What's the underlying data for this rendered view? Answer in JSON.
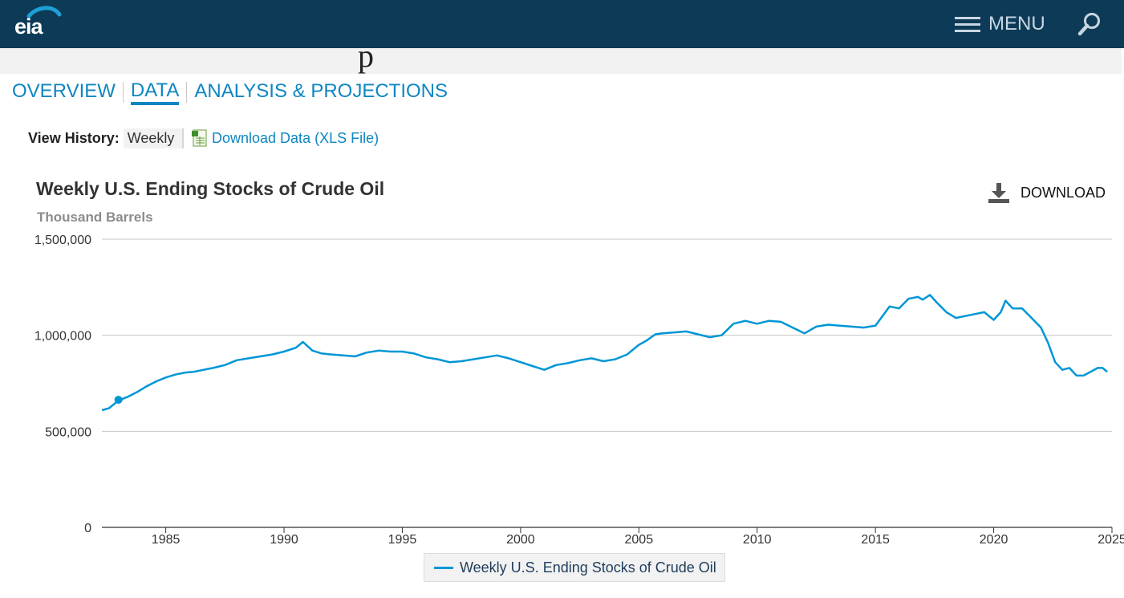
{
  "header": {
    "logo_text": "eia",
    "menu_label": "MENU"
  },
  "tabs": [
    {
      "label": "OVERVIEW"
    },
    {
      "label": "DATA"
    },
    {
      "label": "ANALYSIS & PROJECTIONS"
    }
  ],
  "toolbar": {
    "view_history_label": "View History:",
    "view_history_value": "Weekly",
    "download_xls_label": "Download Data (XLS File)",
    "download_label": "DOWNLOAD"
  },
  "colors": {
    "header_bg": "#0d3b57",
    "accent": "#0e86c2",
    "series": "#0096d6"
  },
  "chart_data": {
    "type": "line",
    "title": "Weekly U.S. Ending Stocks of Crude Oil",
    "subtitle": "Thousand Barrels",
    "xlabel": "",
    "ylabel": "",
    "xlim": [
      1982.3,
      2025.0
    ],
    "ylim": [
      0,
      1500000
    ],
    "x_ticks": [
      1985,
      1990,
      1995,
      2000,
      2005,
      2010,
      2015,
      2020,
      2025
    ],
    "x_tick_labels": [
      "1985",
      "1990",
      "1995",
      "2000",
      "2005",
      "2010",
      "2015",
      "2020",
      "2025"
    ],
    "y_ticks": [
      0,
      500000,
      1000000,
      1500000
    ],
    "y_tick_labels": [
      "0",
      "500,000",
      "1,000,000",
      "1,500,000"
    ],
    "grid": "horizontal",
    "legend": "bottom-center",
    "marker": {
      "x": 1983.0,
      "y": 664000
    },
    "series": [
      {
        "name": "Weekly U.S. Ending Stocks of Crude Oil",
        "x": [
          1982.3,
          1982.6,
          1983.0,
          1983.4,
          1983.8,
          1984.2,
          1984.6,
          1985.0,
          1985.4,
          1985.8,
          1986.2,
          1986.6,
          1987.0,
          1987.5,
          1988.0,
          1988.5,
          1989.0,
          1989.5,
          1990.0,
          1990.5,
          1990.8,
          1991.2,
          1991.6,
          1992.0,
          1992.5,
          1993.0,
          1993.5,
          1994.0,
          1994.5,
          1995.0,
          1995.5,
          1996.0,
          1996.5,
          1997.0,
          1997.5,
          1998.0,
          1998.5,
          1999.0,
          1999.5,
          2000.0,
          2000.5,
          2001.0,
          2001.5,
          2002.0,
          2002.5,
          2003.0,
          2003.5,
          2004.0,
          2004.5,
          2005.0,
          2005.3,
          2005.7,
          2006.0,
          2006.5,
          2007.0,
          2007.5,
          2008.0,
          2008.5,
          2009.0,
          2009.5,
          2010.0,
          2010.5,
          2011.0,
          2011.5,
          2012.0,
          2012.5,
          2013.0,
          2013.5,
          2014.0,
          2014.5,
          2015.0,
          2015.3,
          2015.6,
          2016.0,
          2016.4,
          2016.8,
          2017.0,
          2017.3,
          2017.6,
          2018.0,
          2018.4,
          2018.8,
          2019.2,
          2019.6,
          2020.0,
          2020.3,
          2020.5,
          2020.8,
          2021.2,
          2021.6,
          2022.0,
          2022.3,
          2022.6,
          2022.9,
          2023.2,
          2023.5,
          2023.8,
          2024.1,
          2024.4,
          2024.6,
          2024.8
        ],
        "values": [
          610000,
          620000,
          660000,
          680000,
          705000,
          735000,
          760000,
          780000,
          795000,
          805000,
          810000,
          820000,
          830000,
          845000,
          870000,
          880000,
          890000,
          900000,
          915000,
          935000,
          965000,
          920000,
          905000,
          900000,
          895000,
          890000,
          910000,
          920000,
          915000,
          915000,
          905000,
          885000,
          875000,
          860000,
          865000,
          875000,
          885000,
          895000,
          880000,
          860000,
          840000,
          820000,
          845000,
          855000,
          870000,
          880000,
          865000,
          875000,
          900000,
          950000,
          970000,
          1005000,
          1010000,
          1015000,
          1020000,
          1005000,
          990000,
          1000000,
          1060000,
          1075000,
          1060000,
          1075000,
          1070000,
          1040000,
          1010000,
          1045000,
          1055000,
          1050000,
          1045000,
          1040000,
          1050000,
          1100000,
          1150000,
          1140000,
          1190000,
          1200000,
          1185000,
          1210000,
          1170000,
          1120000,
          1090000,
          1100000,
          1110000,
          1120000,
          1080000,
          1120000,
          1180000,
          1140000,
          1140000,
          1090000,
          1040000,
          960000,
          860000,
          820000,
          830000,
          790000,
          790000,
          810000,
          830000,
          830000,
          810000
        ]
      }
    ]
  }
}
